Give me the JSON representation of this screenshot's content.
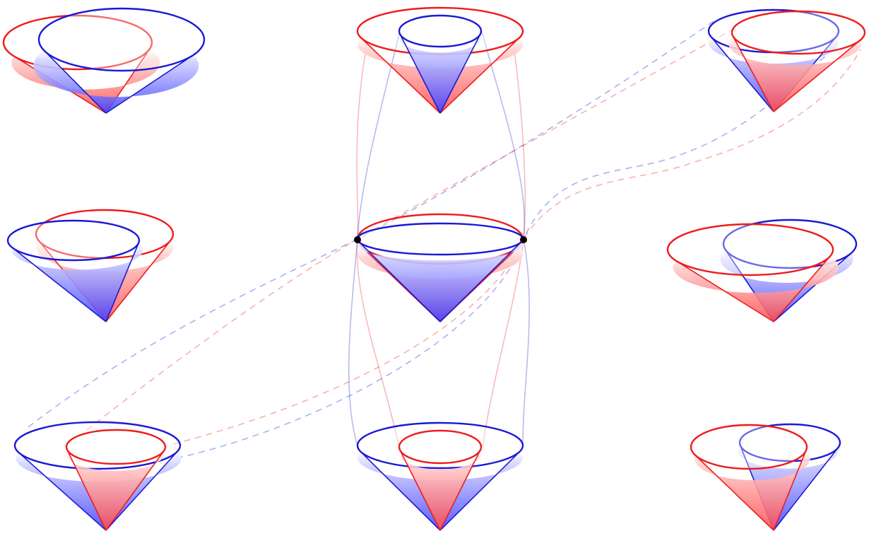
{
  "colors": {
    "red": "#ee1c1c",
    "blue": "#1a1ad4",
    "overlap": "#8b1a7a",
    "point": "#000000",
    "background": "#ffffff"
  },
  "figure": {
    "description_free": true,
    "grid": {
      "rows": 3,
      "columns": 3
    },
    "cones_per_cell": 2,
    "marked_points": 2,
    "dashed_bundles": 2,
    "solid_bundles": 2
  }
}
